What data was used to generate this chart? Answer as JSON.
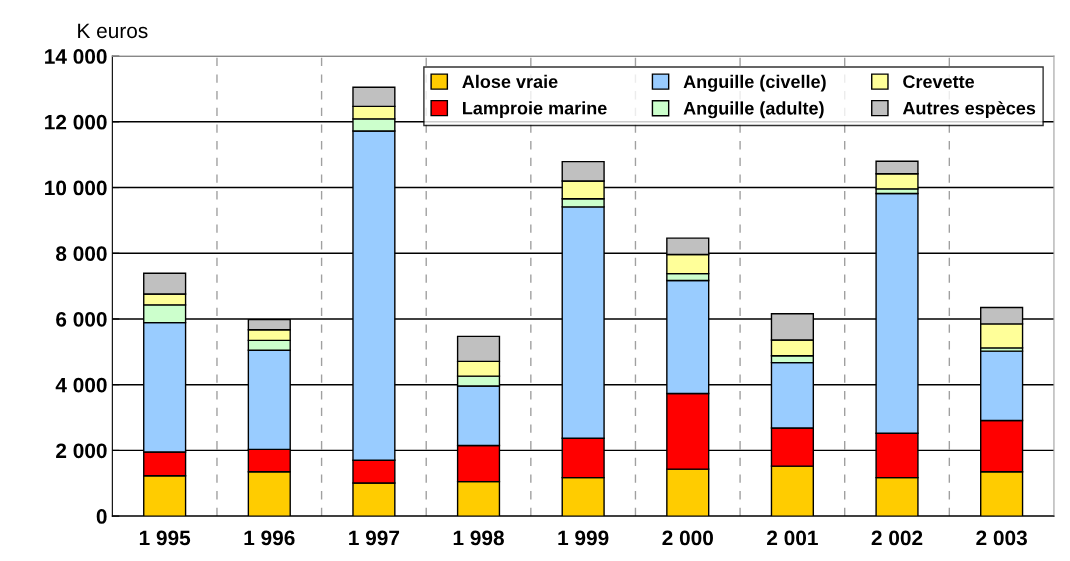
{
  "chart_data": {
    "type": "bar",
    "stacked": true,
    "ylabel": "K euros",
    "categories": [
      "1 995",
      "1 996",
      "1 997",
      "1 998",
      "1 999",
      "2 000",
      "2 001",
      "2 002",
      "2 003"
    ],
    "series": [
      {
        "name": "Alose vraie",
        "color": "#ffcc00",
        "values": [
          1230,
          1350,
          1010,
          1050,
          1170,
          1430,
          1520,
          1170,
          1350
        ]
      },
      {
        "name": "Lamproie marine",
        "color": "#ff0000",
        "values": [
          720,
          680,
          690,
          1100,
          1200,
          2300,
          1160,
          1350,
          1560
        ]
      },
      {
        "name": "Anguille (civelle)",
        "color": "#99ccff",
        "values": [
          3940,
          3020,
          10020,
          1810,
          7040,
          3440,
          1990,
          7300,
          2110
        ]
      },
      {
        "name": "Anguille (adulte)",
        "color": "#ccffcc",
        "values": [
          540,
          300,
          370,
          300,
          250,
          210,
          210,
          140,
          100
        ]
      },
      {
        "name": "Crevette",
        "color": "#ffff99",
        "values": [
          330,
          320,
          380,
          450,
          540,
          580,
          480,
          460,
          730
        ]
      },
      {
        "name": "Autres espèces",
        "color": "#c0c0c0",
        "values": [
          630,
          310,
          580,
          760,
          590,
          500,
          800,
          380,
          500
        ]
      }
    ],
    "ylim": [
      0,
      14000
    ],
    "yticks": [
      {
        "value": 0,
        "label": "0"
      },
      {
        "value": 2000,
        "label": "2 000"
      },
      {
        "value": 4000,
        "label": "4 000"
      },
      {
        "value": 6000,
        "label": "6 000"
      },
      {
        "value": 8000,
        "label": "8 000"
      },
      {
        "value": 10000,
        "label": "10 000"
      },
      {
        "value": 12000,
        "label": "12 000"
      },
      {
        "value": 14000,
        "label": "14 000"
      }
    ],
    "grid": true,
    "legend": "top right"
  }
}
